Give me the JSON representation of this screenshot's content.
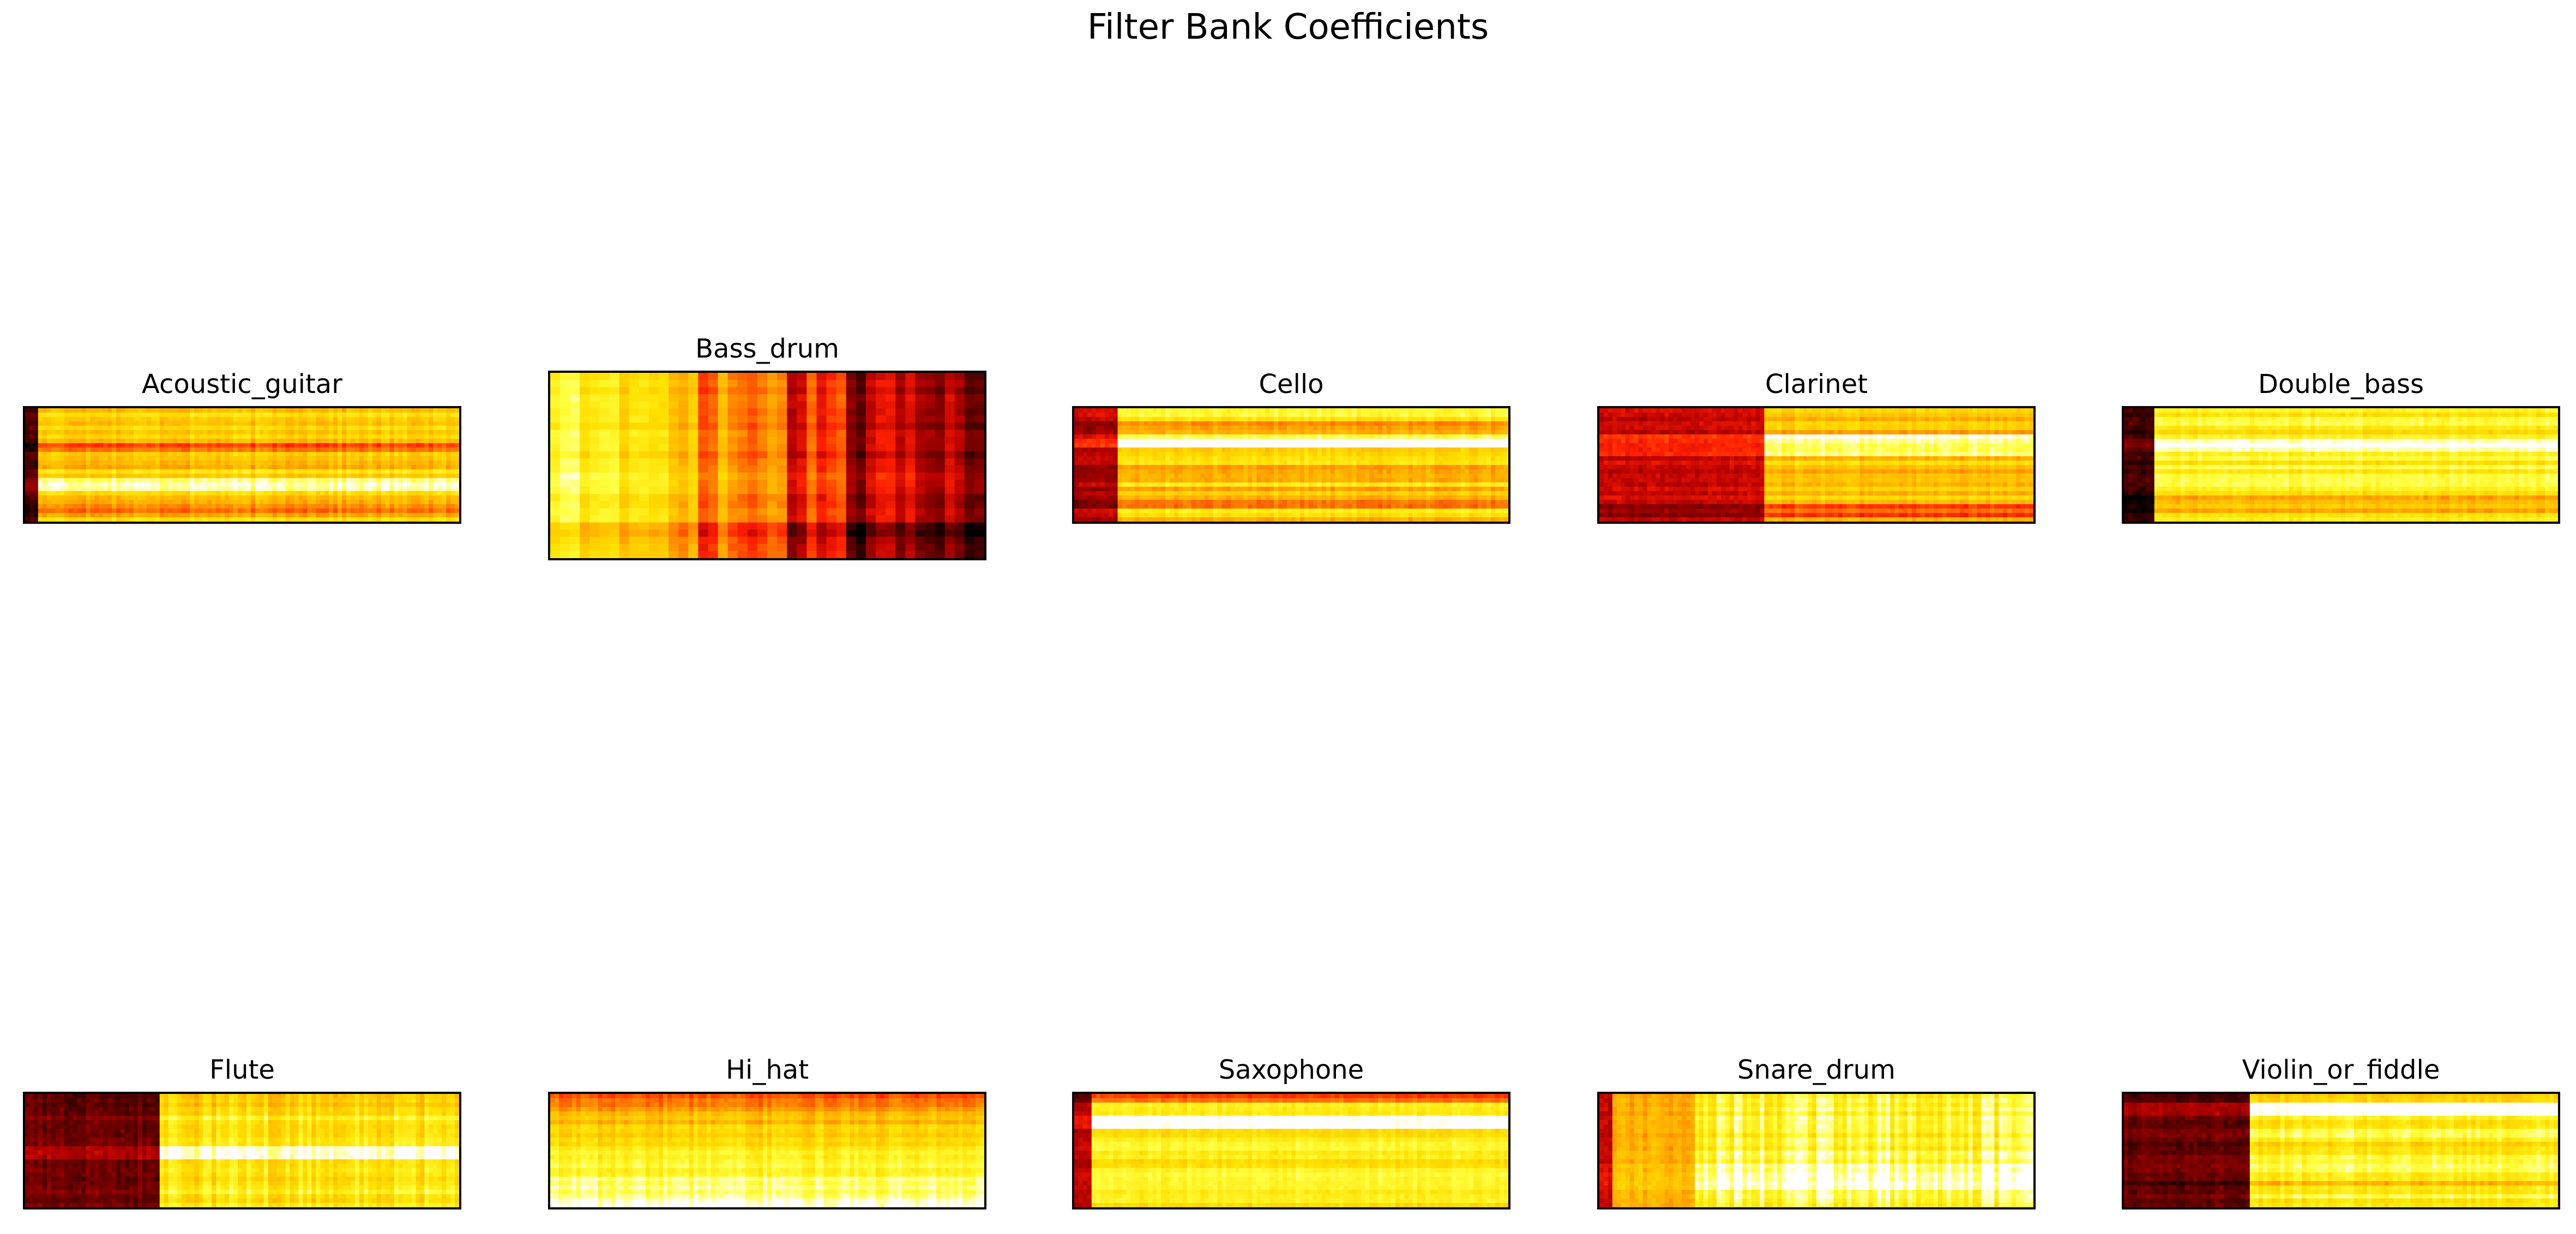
{
  "figure": {
    "title": "Filter Bank Coefficients"
  },
  "chart_data": {
    "type": "heatmap",
    "title": "Filter Bank Coefficients",
    "colormap": "hot",
    "colormap_stops": [
      "#000000",
      "#5a0000",
      "#b40000",
      "#ff2000",
      "#ff7000",
      "#ffb400",
      "#ffe000",
      "#ffff40",
      "#ffffff"
    ],
    "axes_ticks": false,
    "panels": [
      {
        "title": "Acoustic_guitar",
        "rows": 26,
        "cols": 100,
        "pattern": {
          "base": 0.7,
          "dark_cols": [
            [
              0,
              3,
              0.12
            ]
          ],
          "bright_rows": [
            [
              16,
              19,
              0.25
            ]
          ],
          "dark_rows": [
            [
              8,
              10,
              -0.2
            ],
            [
              22,
              24,
              -0.2
            ]
          ],
          "row_stripes": 0.1,
          "col_noise": 0.05
        }
      },
      {
        "title": "Bass_drum",
        "rows": 26,
        "cols": 44,
        "pattern": {
          "left_value": 0.88,
          "right_value": 0.18,
          "bands": [
            [
              15,
              17,
              -0.18
            ],
            [
              24,
              26,
              -0.2
            ],
            [
              30,
              32,
              -0.18
            ]
          ],
          "bottom_dark": 0.12,
          "col_noise": 0.08,
          "row_noise": 0.05
        }
      },
      {
        "title": "Cello",
        "rows": 26,
        "cols": 100,
        "pattern": {
          "base": 0.72,
          "dark_cols": [
            [
              0,
              10,
              0.25
            ]
          ],
          "bright_rows": [
            [
              6,
              9,
              0.26
            ]
          ],
          "dark_rows": [
            [
              3,
              4,
              -0.2
            ],
            [
              20,
              23,
              -0.15
            ]
          ],
          "row_stripes": 0.14,
          "col_noise": 0.04
        }
      },
      {
        "title": "Clarinet",
        "rows": 26,
        "cols": 100,
        "pattern": {
          "base": 0.66,
          "dark_cols": [
            [
              0,
              38,
              0.28
            ]
          ],
          "bright_rows": [
            [
              6,
              11,
              0.25
            ]
          ],
          "dark_rows": [
            [
              22,
              25,
              -0.25
            ]
          ],
          "row_stripes": 0.1,
          "col_noise": 0.04
        }
      },
      {
        "title": "Double_bass",
        "rows": 26,
        "cols": 100,
        "pattern": {
          "base": 0.8,
          "dark_cols": [
            [
              0,
              7,
              0.08
            ]
          ],
          "bright_rows": [
            [
              7,
              10,
              0.18
            ]
          ],
          "dark_rows": [
            [
              20,
              24,
              -0.15
            ]
          ],
          "row_stripes": 0.08,
          "col_noise": 0.03
        }
      },
      {
        "title": "Flute",
        "rows": 26,
        "cols": 100,
        "pattern": {
          "base": 0.78,
          "dark_cols": [
            [
              0,
              31,
              0.16
            ]
          ],
          "bright_rows": [
            [
              12,
              15,
              0.22
            ]
          ],
          "dark_rows": [
            [
              0,
              3,
              -0.1
            ]
          ],
          "row_stripes": 0.06,
          "col_noise": 0.08
        }
      },
      {
        "title": "Hi_hat",
        "rows": 26,
        "cols": 100,
        "pattern": {
          "top_value": 0.45,
          "bottom_value": 0.95,
          "row_stripes": 0.05,
          "col_noise": 0.05
        }
      },
      {
        "title": "Saxophone",
        "rows": 26,
        "cols": 100,
        "pattern": {
          "base": 0.8,
          "dark_cols": [
            [
              0,
              4,
              0.25
            ]
          ],
          "bright_rows": [
            [
              5,
              8,
              0.18
            ]
          ],
          "dark_rows": [
            [
              0,
              2,
              -0.35
            ]
          ],
          "row_stripes": 0.07,
          "col_noise": 0.03
        }
      },
      {
        "title": "Snare_drum",
        "rows": 26,
        "cols": 100,
        "pattern": {
          "base": 0.86,
          "dark_cols": [
            [
              0,
              3,
              0.25
            ],
            [
              3,
              22,
              0.62
            ]
          ],
          "bright_rows": [
            [
              16,
              22,
              0.1
            ]
          ],
          "row_stripes": 0.06,
          "col_noise": 0.1
        }
      },
      {
        "title": "Violin_or_fiddle",
        "rows": 26,
        "cols": 100,
        "pattern": {
          "base": 0.8,
          "dark_cols": [
            [
              0,
              29,
              0.14
            ]
          ],
          "bright_rows": [
            [
              2,
              5,
              0.18
            ]
          ],
          "dark_rows": [
            [
              20,
              23,
              -0.1
            ]
          ],
          "row_stripes": 0.1,
          "col_noise": 0.05
        }
      }
    ]
  }
}
